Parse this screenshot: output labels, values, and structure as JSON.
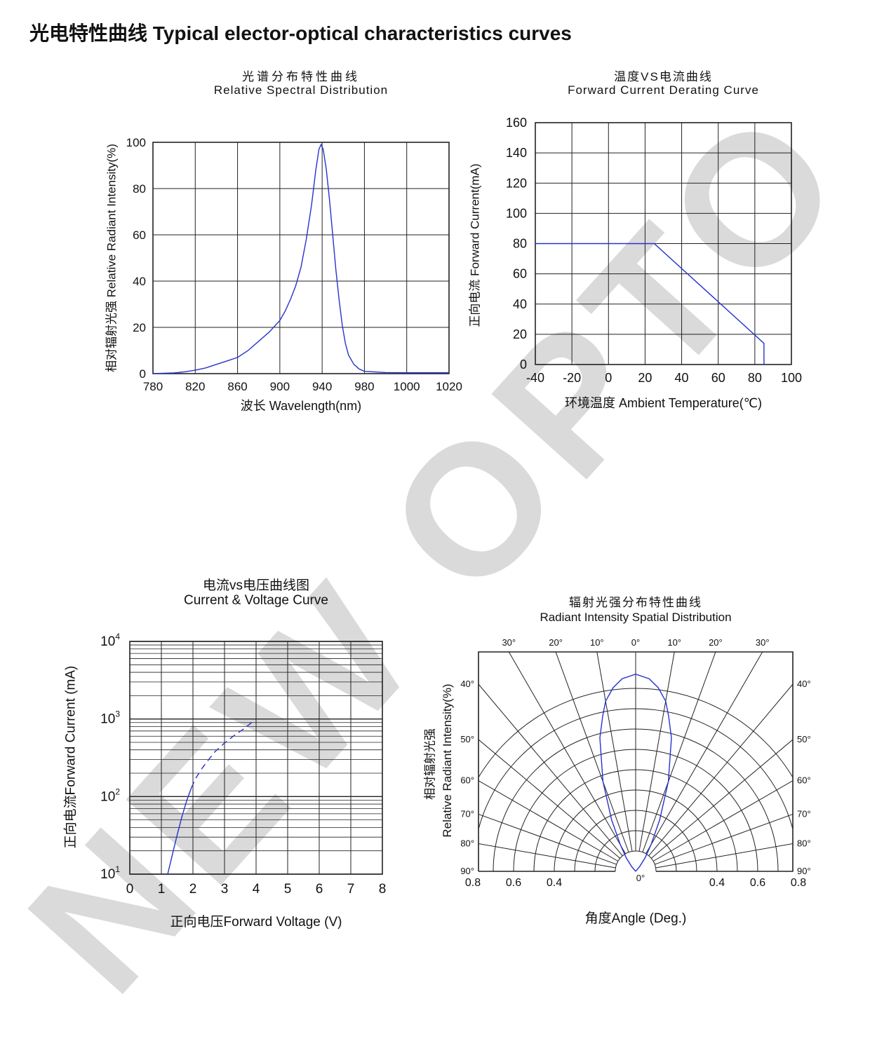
{
  "page": {
    "title": "光电特性曲线 Typical elector-optical characteristics curves",
    "watermark": "NEW OPTO",
    "accent_color": "#2633cc",
    "grid_color": "#222222",
    "watermark_color": "#dadada"
  },
  "chart_data": [
    {
      "id": "spectral",
      "type": "line",
      "title_cn": "光谱分布特性曲线",
      "title_en": "Relative Spectral Distribution",
      "xlabel": "波长  Wavelength(nm)",
      "ylabel": "相对辐射光强  Relative  Radiant Intensity(%)",
      "x_ticks": [
        780,
        820,
        860,
        900,
        940,
        980,
        1000,
        1020
      ],
      "y_ticks": [
        0,
        20,
        40,
        60,
        80,
        100
      ],
      "ylim": [
        0,
        100
      ],
      "grid": true,
      "axis_note": "x axis drawn with equal spacing per labeled interval (non-linear)",
      "peak_wavelength_nm": 939,
      "points": [
        [
          780,
          0
        ],
        [
          800,
          0.3
        ],
        [
          810,
          0.8
        ],
        [
          820,
          1.5
        ],
        [
          830,
          2.5
        ],
        [
          840,
          4
        ],
        [
          850,
          5.5
        ],
        [
          860,
          7
        ],
        [
          870,
          10
        ],
        [
          880,
          14
        ],
        [
          890,
          18
        ],
        [
          900,
          23
        ],
        [
          905,
          27
        ],
        [
          910,
          32
        ],
        [
          915,
          38
        ],
        [
          920,
          46
        ],
        [
          925,
          58
        ],
        [
          930,
          73
        ],
        [
          934,
          88
        ],
        [
          937,
          97
        ],
        [
          939,
          99
        ],
        [
          941,
          97
        ],
        [
          944,
          88
        ],
        [
          947,
          75
        ],
        [
          950,
          60
        ],
        [
          953,
          45
        ],
        [
          956,
          32
        ],
        [
          959,
          21
        ],
        [
          962,
          13
        ],
        [
          965,
          8
        ],
        [
          970,
          4
        ],
        [
          975,
          2
        ],
        [
          980,
          1
        ],
        [
          990,
          0.5
        ],
        [
          1000,
          0.4
        ],
        [
          1010,
          0.4
        ],
        [
          1020,
          0.4
        ]
      ]
    },
    {
      "id": "derating",
      "type": "line",
      "title_cn": "温度VS电流曲线",
      "title_en": "Forward Current Derating Curve",
      "xlabel": "环境温度  Ambient Temperature(℃)",
      "ylabel": "正向电流 Forward Current(mA)",
      "x_ticks": [
        -40,
        -20,
        0,
        20,
        40,
        60,
        80,
        100
      ],
      "y_ticks": [
        0,
        20,
        40,
        60,
        80,
        100,
        120,
        140,
        160
      ],
      "xlim": [
        -40,
        100
      ],
      "ylim": [
        0,
        160
      ],
      "grid": true,
      "points": [
        [
          -40,
          80
        ],
        [
          25,
          80
        ],
        [
          85,
          14
        ],
        [
          85,
          0
        ]
      ]
    },
    {
      "id": "vi",
      "type": "line",
      "y_scale": "log",
      "title_cn": "电流vs电压曲线图",
      "title_en": "Current & Voltage Curve",
      "xlabel": "正向电压Forward Voltage (V)",
      "ylabel": "正向电流Forward Current (mA)",
      "x_ticks": [
        0,
        1,
        2,
        3,
        4,
        5,
        6,
        7,
        8
      ],
      "y_ticks": [
        {
          "base": "10",
          "exp": "1"
        },
        {
          "base": "10",
          "exp": "2"
        },
        {
          "base": "10",
          "exp": "3"
        },
        {
          "base": "10",
          "exp": "4"
        }
      ],
      "xlim": [
        0,
        8
      ],
      "ylim_log": [
        10,
        10000
      ],
      "grid": true,
      "solid_points": [
        [
          1.2,
          10
        ],
        [
          1.35,
          18
        ],
        [
          1.5,
          32
        ],
        [
          1.65,
          55
        ],
        [
          1.8,
          88
        ],
        [
          1.95,
          130
        ]
      ],
      "dashed_points": [
        [
          1.95,
          130
        ],
        [
          2.1,
          175
        ],
        [
          2.3,
          235
        ],
        [
          2.5,
          300
        ],
        [
          2.7,
          380
        ],
        [
          3.0,
          490
        ],
        [
          3.3,
          610
        ],
        [
          3.6,
          740
        ],
        [
          4.0,
          1000
        ]
      ]
    },
    {
      "id": "spatial",
      "type": "polar",
      "title_cn": "辐射光强分布特性曲线",
      "title_en": "Radiant Intensity  Spatial Distribution",
      "xlabel": "角度Angle (Deg.)",
      "ylabel_cn": "相对辐射光强",
      "ylabel_en": "Relative  Radiant  Intensity(%)",
      "angle_ticks_top": [
        "30°",
        "20°",
        "10°",
        "0°",
        "10°",
        "20°",
        "30°"
      ],
      "angle_ticks_top_deg": [
        -30,
        -20,
        -10,
        0,
        10,
        20,
        30
      ],
      "angle_ticks_side": [
        "40°",
        "50°",
        "60°",
        "70°",
        "80°",
        "90°"
      ],
      "angle_ticks_side_deg": [
        40,
        50,
        60,
        70,
        80,
        90
      ],
      "radial_ticks_left": [
        "0.8",
        "0.6",
        "0.4"
      ],
      "radial_ticks_right": [
        "0.4",
        "0.6",
        "0.8"
      ],
      "radial_tick_values": [
        0.8,
        0.6,
        0.4
      ],
      "origin_label": "0°",
      "arc_radii": [
        0.1,
        0.2,
        0.3,
        0.4,
        0.5,
        0.6,
        0.7,
        0.8,
        0.9
      ],
      "radial_line_step_deg": 10,
      "lobe_points": [
        [
          -45,
          0
        ],
        [
          -40,
          0.03
        ],
        [
          -35,
          0.08
        ],
        [
          -30,
          0.15
        ],
        [
          -25,
          0.28
        ],
        [
          -20,
          0.47
        ],
        [
          -15,
          0.68
        ],
        [
          -12,
          0.78
        ],
        [
          -10,
          0.85
        ],
        [
          -7,
          0.91
        ],
        [
          -4,
          0.95
        ],
        [
          0,
          0.97
        ],
        [
          4,
          0.95
        ],
        [
          7,
          0.91
        ],
        [
          10,
          0.85
        ],
        [
          12,
          0.78
        ],
        [
          15,
          0.68
        ],
        [
          20,
          0.47
        ],
        [
          25,
          0.28
        ],
        [
          30,
          0.15
        ],
        [
          35,
          0.08
        ],
        [
          40,
          0.03
        ],
        [
          45,
          0
        ]
      ]
    }
  ]
}
